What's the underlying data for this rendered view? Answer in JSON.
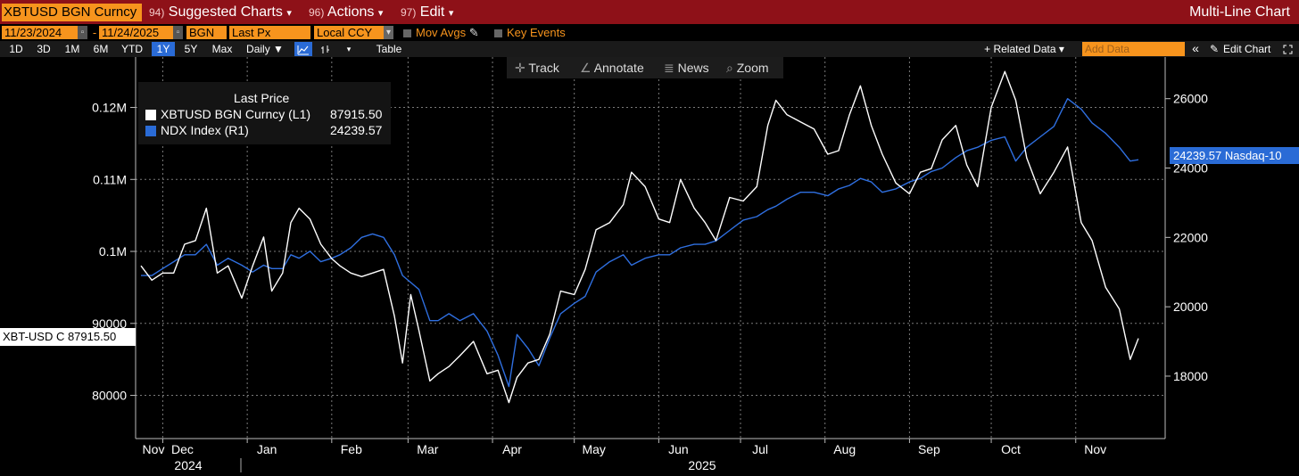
{
  "toolbar": {
    "security": "XBTUSD BGN Curncy",
    "menus": [
      {
        "num": "94)",
        "label": "Suggested Charts",
        "arrow": "▾"
      },
      {
        "num": "96)",
        "label": "Actions",
        "arrow": "▾"
      },
      {
        "num": "97)",
        "label": "Edit",
        "arrow": "▾"
      }
    ],
    "chart_type": "Multi-Line Chart"
  },
  "settings": {
    "start_date": "11/23/2024",
    "end_date": "11/24/2025",
    "source": "BGN",
    "field": "Last Px",
    "currency": "Local CCY",
    "mov_avgs": "Mov Avgs",
    "key_events": "Key Events"
  },
  "periods": {
    "items": [
      "1D",
      "3D",
      "1M",
      "6M",
      "YTD",
      "1Y",
      "5Y",
      "Max"
    ],
    "active": "1Y",
    "frequency": "Daily ▼",
    "table": "Table",
    "related_data": "+ Related Data ▾",
    "add_data_placeholder": "Add Data",
    "collapse": "«",
    "edit_chart": "Edit Chart"
  },
  "chart_tools": {
    "track": "Track",
    "annotate": "Annotate",
    "news": "News",
    "zoom": "Zoom"
  },
  "legend": {
    "title": "Last Price",
    "entries": [
      {
        "label": "XBTUSD BGN Curncy  (L1)",
        "value": "87915.50",
        "color": "#ffffff"
      },
      {
        "label": "NDX Index  (R1)",
        "value": "24239.57",
        "color": "#2a6bd6"
      }
    ]
  },
  "last_labels": {
    "left": "XBT-USD C 87915.50",
    "right": "24239.57 Nasdaq-10"
  },
  "colors": {
    "background": "#000000",
    "btc": "#ffffff",
    "ndx": "#2f6fe0",
    "grid": "#7a7a7a",
    "accent": "#f7941d",
    "bar": "#8e1118"
  },
  "chart_data": {
    "type": "line",
    "left_axis": {
      "ticks": [
        80000,
        90000,
        100000,
        110000,
        120000
      ],
      "tick_labels": [
        "80000",
        "90000",
        "0.1M",
        "0.11M",
        "0.12M"
      ],
      "range": [
        74000,
        127000
      ]
    },
    "right_axis": {
      "ticks": [
        18000,
        20000,
        22000,
        24000,
        26000
      ],
      "tick_labels": [
        "18000",
        "20000",
        "22000",
        "24000",
        "26000"
      ],
      "range": [
        16200,
        27200
      ]
    },
    "x_axis": {
      "months": [
        "Nov",
        "Dec",
        "Jan",
        "Feb",
        "Mar",
        "Apr",
        "May",
        "Jun",
        "Jul",
        "Aug",
        "Sep",
        "Oct",
        "Nov"
      ],
      "years": [
        "2024",
        "2025"
      ],
      "start": "2024-11-23",
      "end": "2025-11-24"
    },
    "series": [
      {
        "name": "XBTUSD BGN Curncy (L1)",
        "axis": "left",
        "x": [
          "2024-11-23",
          "2024-11-27",
          "2024-12-01",
          "2024-12-05",
          "2024-12-09",
          "2024-12-13",
          "2024-12-17",
          "2024-12-21",
          "2024-12-25",
          "2024-12-30",
          "2025-01-03",
          "2025-01-07",
          "2025-01-10",
          "2025-01-14",
          "2025-01-17",
          "2025-01-20",
          "2025-01-24",
          "2025-01-28",
          "2025-02-01",
          "2025-02-04",
          "2025-02-08",
          "2025-02-12",
          "2025-02-16",
          "2025-02-20",
          "2025-02-24",
          "2025-02-27",
          "2025-03-02",
          "2025-03-05",
          "2025-03-09",
          "2025-03-12",
          "2025-03-16",
          "2025-03-20",
          "2025-03-25",
          "2025-03-30",
          "2025-04-03",
          "2025-04-07",
          "2025-04-10",
          "2025-04-14",
          "2025-04-18",
          "2025-04-22",
          "2025-04-26",
          "2025-05-01",
          "2025-05-05",
          "2025-05-09",
          "2025-05-14",
          "2025-05-19",
          "2025-05-22",
          "2025-05-27",
          "2025-06-01",
          "2025-06-05",
          "2025-06-09",
          "2025-06-14",
          "2025-06-18",
          "2025-06-22",
          "2025-06-27",
          "2025-07-02",
          "2025-07-07",
          "2025-07-11",
          "2025-07-14",
          "2025-07-18",
          "2025-07-23",
          "2025-07-28",
          "2025-08-02",
          "2025-08-06",
          "2025-08-10",
          "2025-08-14",
          "2025-08-18",
          "2025-08-22",
          "2025-08-27",
          "2025-09-01",
          "2025-09-05",
          "2025-09-09",
          "2025-09-13",
          "2025-09-18",
          "2025-09-22",
          "2025-09-26",
          "2025-10-01",
          "2025-10-06",
          "2025-10-10",
          "2025-10-14",
          "2025-10-19",
          "2025-10-24",
          "2025-10-29",
          "2025-11-03",
          "2025-11-07",
          "2025-11-12",
          "2025-11-17",
          "2025-11-21",
          "2025-11-24"
        ],
        "values": [
          98000,
          96000,
          97000,
          97000,
          101000,
          101500,
          106000,
          97000,
          98000,
          93500,
          98000,
          102000,
          94500,
          97000,
          104000,
          106000,
          104500,
          101000,
          99000,
          98000,
          97000,
          96500,
          97000,
          97500,
          91000,
          84500,
          94000,
          89000,
          82000,
          83000,
          84000,
          85500,
          87500,
          83000,
          83500,
          79000,
          82500,
          84500,
          85000,
          88500,
          94500,
          94000,
          97500,
          103000,
          104000,
          106500,
          111000,
          109000,
          104500,
          104000,
          110000,
          106000,
          104000,
          101500,
          107500,
          107000,
          109000,
          117500,
          121000,
          119000,
          118000,
          117000,
          113500,
          114000,
          119000,
          123000,
          117500,
          113500,
          109500,
          108000,
          111000,
          111500,
          115500,
          117500,
          112000,
          109000,
          120000,
          125000,
          121000,
          113000,
          108000,
          111000,
          114500,
          104000,
          101500,
          95000,
          92000,
          85000,
          87915
        ]
      },
      {
        "name": "NDX Index (R1)",
        "axis": "right",
        "x": [
          "2024-11-23",
          "2024-11-27",
          "2024-12-01",
          "2024-12-05",
          "2024-12-09",
          "2024-12-13",
          "2024-12-17",
          "2024-12-21",
          "2024-12-25",
          "2024-12-30",
          "2025-01-03",
          "2025-01-07",
          "2025-01-10",
          "2025-01-14",
          "2025-01-17",
          "2025-01-20",
          "2025-01-24",
          "2025-01-28",
          "2025-02-01",
          "2025-02-04",
          "2025-02-08",
          "2025-02-12",
          "2025-02-16",
          "2025-02-20",
          "2025-02-24",
          "2025-02-27",
          "2025-03-02",
          "2025-03-05",
          "2025-03-09",
          "2025-03-12",
          "2025-03-16",
          "2025-03-20",
          "2025-03-25",
          "2025-03-30",
          "2025-04-03",
          "2025-04-07",
          "2025-04-10",
          "2025-04-14",
          "2025-04-18",
          "2025-04-22",
          "2025-04-26",
          "2025-05-01",
          "2025-05-05",
          "2025-05-09",
          "2025-05-14",
          "2025-05-19",
          "2025-05-22",
          "2025-05-27",
          "2025-06-01",
          "2025-06-05",
          "2025-06-09",
          "2025-06-14",
          "2025-06-18",
          "2025-06-22",
          "2025-06-27",
          "2025-07-02",
          "2025-07-07",
          "2025-07-11",
          "2025-07-14",
          "2025-07-18",
          "2025-07-23",
          "2025-07-28",
          "2025-08-02",
          "2025-08-06",
          "2025-08-10",
          "2025-08-14",
          "2025-08-18",
          "2025-08-22",
          "2025-08-27",
          "2025-09-01",
          "2025-09-05",
          "2025-09-09",
          "2025-09-13",
          "2025-09-18",
          "2025-09-22",
          "2025-09-26",
          "2025-10-01",
          "2025-10-06",
          "2025-10-10",
          "2025-10-14",
          "2025-10-19",
          "2025-10-24",
          "2025-10-29",
          "2025-11-03",
          "2025-11-07",
          "2025-11-12",
          "2025-11-17",
          "2025-11-21",
          "2025-11-24"
        ],
        "values": [
          20900,
          20900,
          21100,
          21300,
          21500,
          21500,
          21800,
          21200,
          21400,
          21200,
          21000,
          21200,
          21100,
          21100,
          21500,
          21400,
          21600,
          21300,
          21400,
          21500,
          21700,
          22000,
          22100,
          22000,
          21500,
          20900,
          20700,
          20500,
          19600,
          19600,
          19800,
          19600,
          19800,
          19300,
          18600,
          17700,
          19200,
          18800,
          18300,
          19100,
          19800,
          20100,
          20300,
          21000,
          21300,
          21500,
          21200,
          21400,
          21500,
          21500,
          21700,
          21800,
          21800,
          21900,
          22200,
          22500,
          22600,
          22800,
          22900,
          23100,
          23300,
          23300,
          23200,
          23400,
          23500,
          23700,
          23600,
          23300,
          23400,
          23600,
          23700,
          23900,
          24000,
          24300,
          24500,
          24600,
          24800,
          24900,
          24200,
          24600,
          24900,
          25200,
          26000,
          25700,
          25300,
          25000,
          24600,
          24200,
          24240
        ]
      }
    ]
  }
}
